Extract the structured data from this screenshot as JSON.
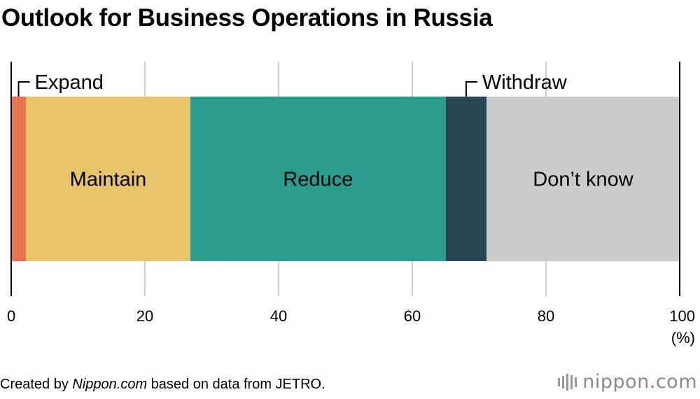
{
  "title": "Outlook for Business Operations in Russia",
  "footer": {
    "prefix": "Created by ",
    "source_site": "Nippon.com",
    "suffix": " based on data from JETRO."
  },
  "logo": {
    "text_before": "nippon",
    "dot": ".",
    "text_after": "com"
  },
  "chart_data": {
    "type": "bar",
    "orientation": "horizontal",
    "stacked": true,
    "title": "Outlook for Business Operations in Russia",
    "xlim": [
      0,
      100
    ],
    "xticks": [
      0,
      20,
      40,
      60,
      80,
      100
    ],
    "xunit": "(%)",
    "grid": true,
    "series": [
      {
        "name": "Expand",
        "value": 2.2,
        "color": "#E8744E",
        "label_position": "callout"
      },
      {
        "name": "Maintain",
        "value": 24.6,
        "color": "#E8C46B",
        "label_position": "inside"
      },
      {
        "name": "Reduce",
        "value": 38.2,
        "color": "#2A9D8F",
        "label_position": "inside"
      },
      {
        "name": "Withdraw",
        "value": 6.1,
        "color": "#264653",
        "label_position": "callout"
      },
      {
        "name": "Don’t know",
        "value": 28.9,
        "color": "#CCCCCC",
        "label_position": "inside"
      }
    ]
  }
}
